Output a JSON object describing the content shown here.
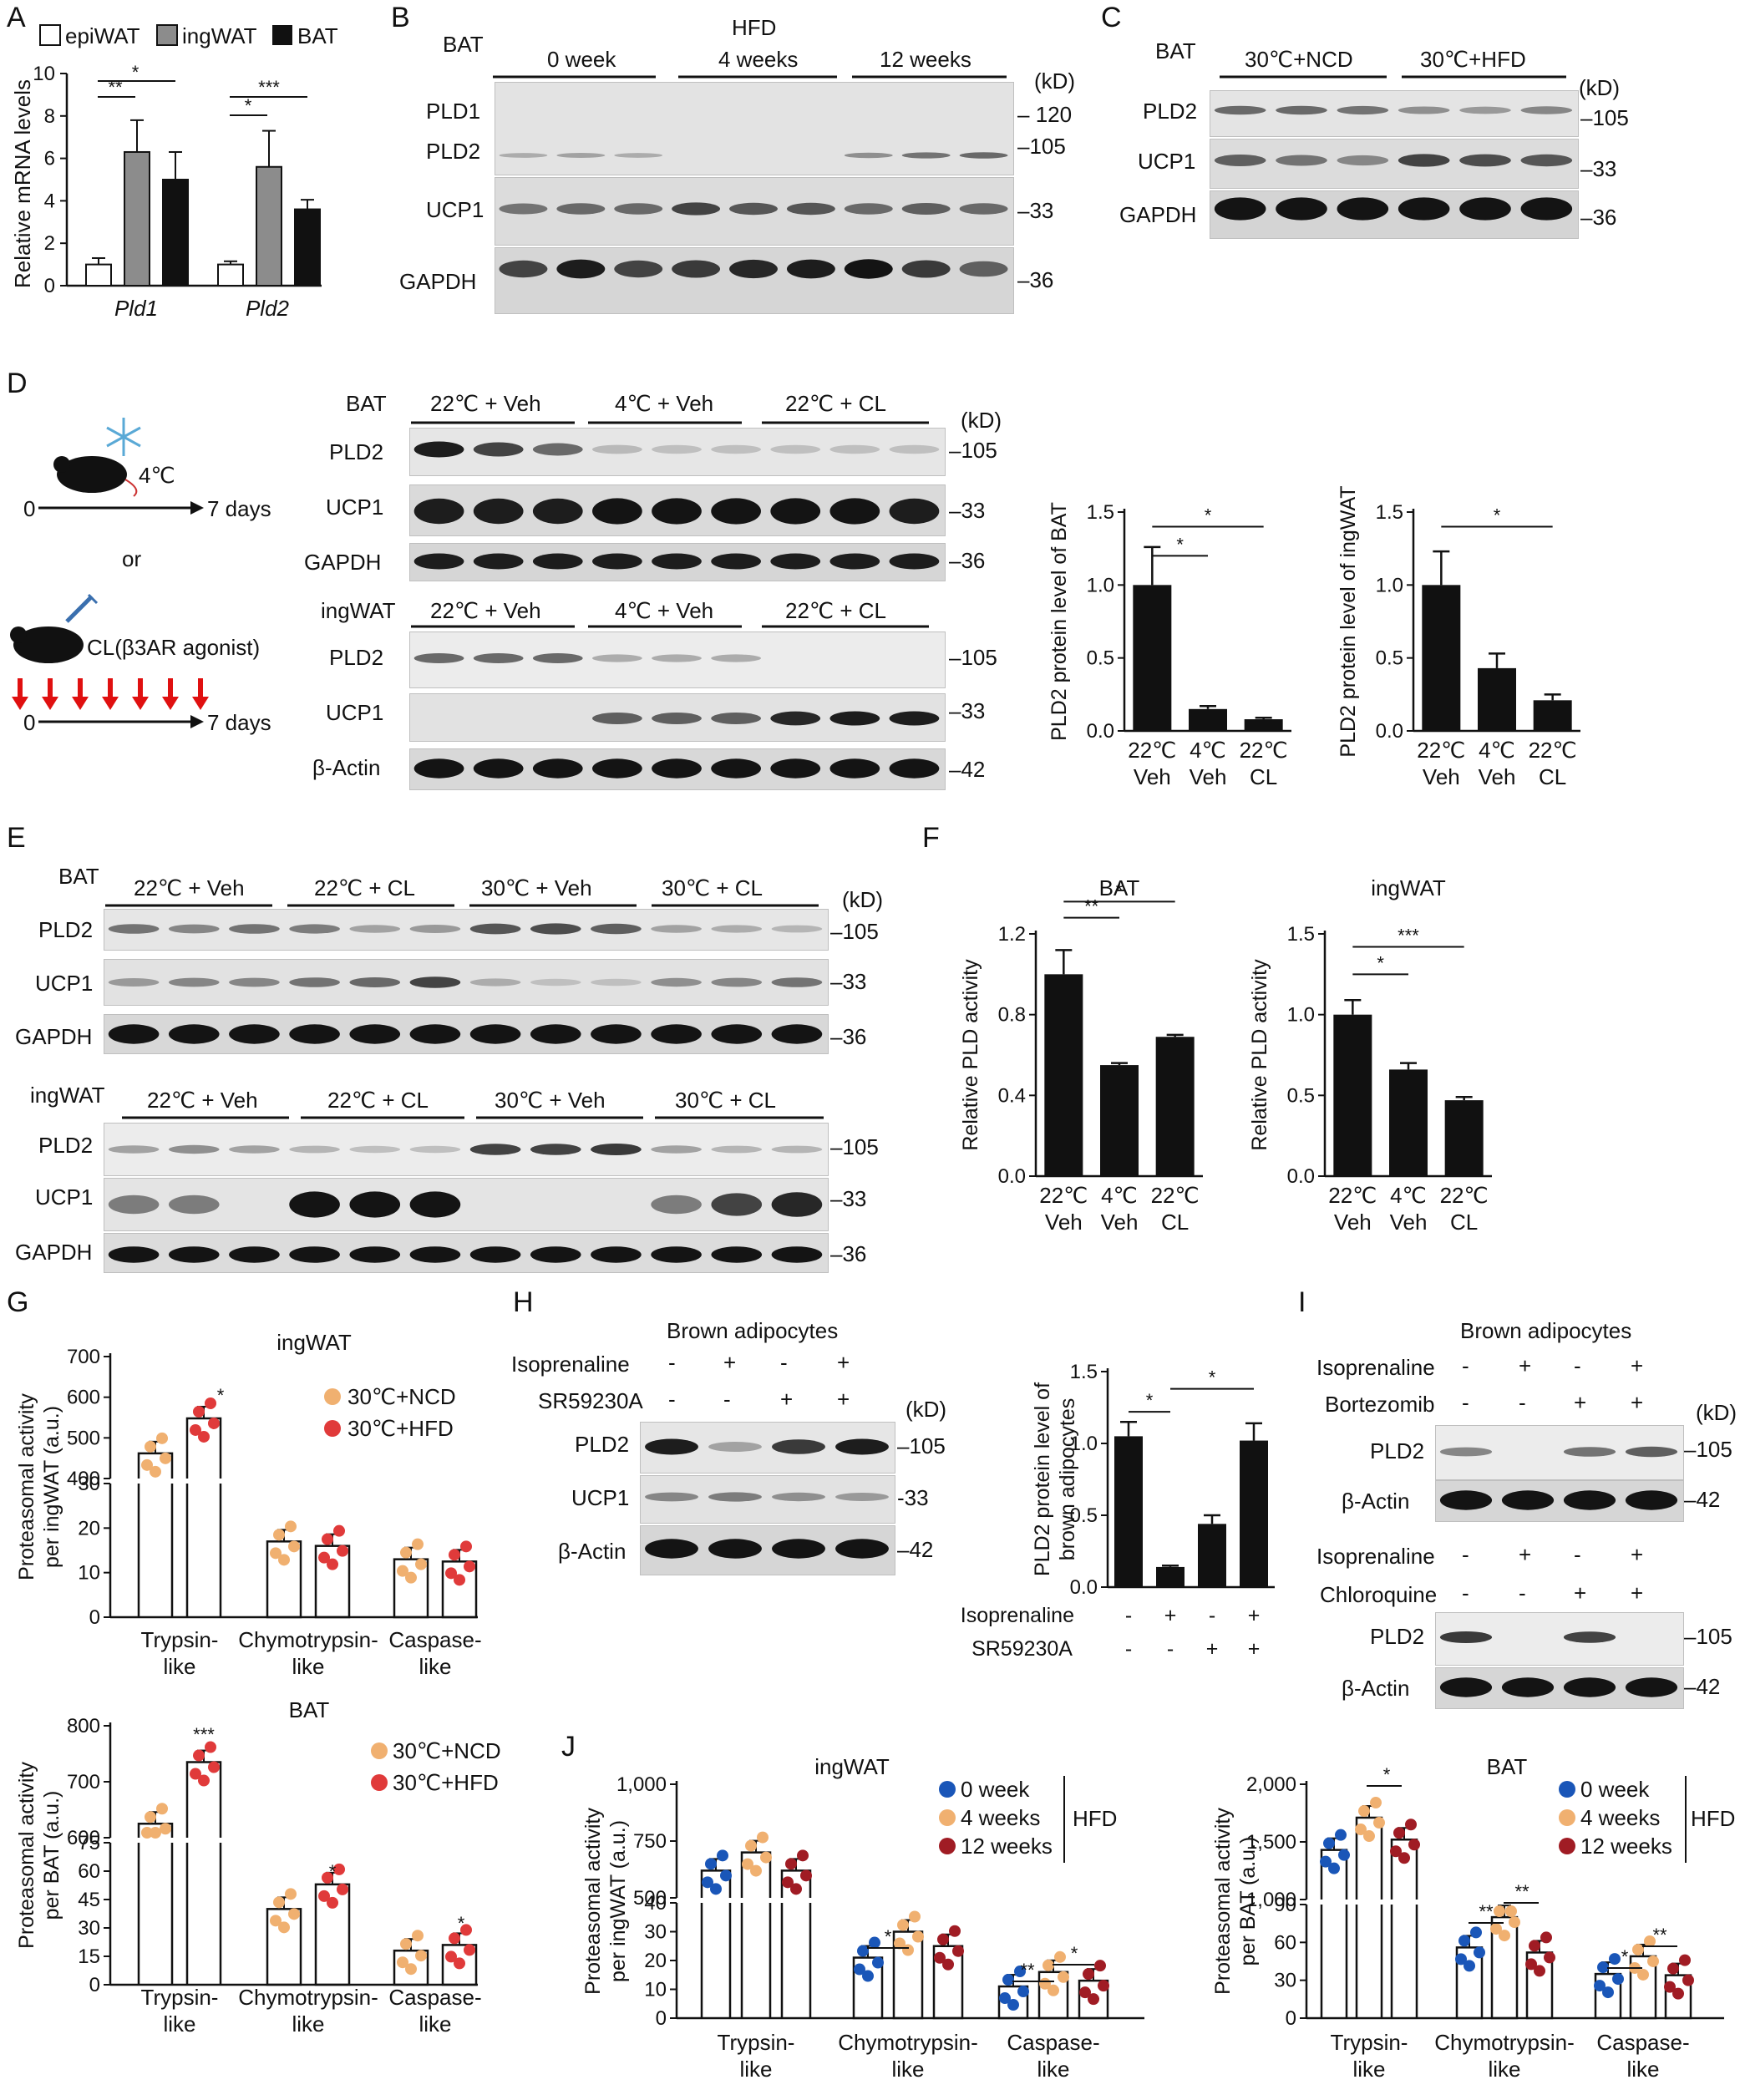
{
  "panels": {
    "A": {
      "letter": "A",
      "legend": [
        "epiWAT",
        "ingWAT",
        "BAT"
      ],
      "ylabel": "Relative mRNA levels",
      "genes": [
        "Pld1",
        "Pld2"
      ],
      "yticks": [
        "0",
        "2",
        "4",
        "6",
        "8",
        "10"
      ],
      "sig": [
        "**",
        "*",
        "*",
        "***"
      ]
    },
    "B": {
      "letter": "B",
      "tissue": "BAT",
      "header": "HFD",
      "groups": [
        "0 week",
        "4 weeks",
        "12 weeks"
      ],
      "unit": "(kD)",
      "rows": [
        "PLD1",
        "PLD2",
        "UCP1",
        "GAPDH"
      ],
      "markers": [
        "120",
        "105",
        "33",
        "36"
      ]
    },
    "C": {
      "letter": "C",
      "tissue": "BAT",
      "groups": [
        "30℃+NCD",
        "30℃+HFD"
      ],
      "unit": "(kD)",
      "rows": [
        "PLD2",
        "UCP1",
        "GAPDH"
      ],
      "markers": [
        "105",
        "33",
        "36"
      ]
    },
    "D": {
      "letter": "D",
      "scheme": {
        "temp": "4℃",
        "days": "7 days",
        "zero": "0",
        "or": "or",
        "cl": "CL(β3AR agonist)"
      },
      "bat_label": "BAT",
      "ing_label": "ingWAT",
      "groups": [
        "22℃ + Veh",
        "4℃ + Veh",
        "22℃ + CL"
      ],
      "unit": "(kD)",
      "bat_rows": [
        "PLD2",
        "UCP1",
        "GAPDH"
      ],
      "bat_markers": [
        "105",
        "33",
        "36"
      ],
      "ing_rows": [
        "PLD2",
        "UCP1",
        "β-Actin"
      ],
      "ing_markers": [
        "105",
        "33",
        "42"
      ],
      "ylabel_bat": "PLD2 protein level of BAT",
      "ylabel_ing": "PLD2 protein level of ingWAT",
      "xcats": [
        [
          "22℃",
          "Veh"
        ],
        [
          "4℃",
          "Veh"
        ],
        [
          "22℃",
          "CL"
        ]
      ],
      "yticks": [
        "0.0",
        "0.5",
        "1.0",
        "1.5"
      ],
      "sig": "*"
    },
    "E": {
      "letter": "E",
      "bat_label": "BAT",
      "ing_label": "ingWAT",
      "groups": [
        "22℃ + Veh",
        "22℃ + CL",
        "30℃ + Veh",
        "30℃ + CL"
      ],
      "unit": "(kD)",
      "rows": [
        "PLD2",
        "UCP1",
        "GAPDH"
      ],
      "markers": [
        "105",
        "33",
        "36"
      ]
    },
    "F": {
      "letter": "F",
      "titles": [
        "BAT",
        "ingWAT"
      ],
      "ylabel": "Relative PLD activity",
      "xcats": [
        [
          "22℃",
          "Veh"
        ],
        [
          "4℃",
          "Veh"
        ],
        [
          "22℃",
          "CL"
        ]
      ],
      "yticks_bat": [
        "0.0",
        "0.4",
        "0.8",
        "1.2"
      ],
      "yticks_ing": [
        "0.0",
        "0.5",
        "1.0",
        "1.5"
      ],
      "sig_bat": [
        "**",
        "*"
      ],
      "sig_ing": [
        "*",
        "***"
      ]
    },
    "G": {
      "letter": "G",
      "title_top": "ingWAT",
      "title_bottom": "BAT",
      "legend": [
        "30℃+NCD",
        "30℃+HFD"
      ],
      "ylabel_top": [
        "Proteasomal activity",
        "per ingWAT (a.u.)"
      ],
      "ylabel_bottom": [
        "Proteasomal activity",
        "per BAT (a.u.)"
      ],
      "xcats": [
        [
          "Trypsin-",
          "like"
        ],
        [
          "Chymotrypsin-",
          "like"
        ],
        [
          "Caspase-",
          "like"
        ]
      ],
      "yticks_top_hi": [
        "400",
        "500",
        "600",
        "700"
      ],
      "yticks_top_lo": [
        "0",
        "10",
        "20",
        "30"
      ],
      "yticks_bot_hi": [
        "600",
        "700",
        "800"
      ],
      "yticks_bot_lo": [
        "0",
        "15",
        "30",
        "45",
        "60",
        "75"
      ],
      "sig_top": [
        "*"
      ],
      "sig_bot": [
        "***",
        "*",
        "*"
      ]
    },
    "H": {
      "letter": "H",
      "title": "Brown adipocytes",
      "treatments": [
        "Isoprenaline",
        "SR59230A"
      ],
      "iso": [
        "-",
        "+",
        "-",
        "+"
      ],
      "sr": [
        "-",
        "-",
        "+",
        "+"
      ],
      "unit": "(kD)",
      "rows": [
        "PLD2",
        "UCP1",
        "β-Actin"
      ],
      "markers": [
        "105",
        "33",
        "42"
      ],
      "ylabel": [
        "PLD2 protein level of",
        "brown adipocytes"
      ],
      "yticks": [
        "0.0",
        "0.5",
        "1.0",
        "1.5"
      ],
      "sig": [
        "*",
        "*"
      ]
    },
    "I": {
      "letter": "I",
      "title": "Brown adipocytes",
      "treatments_top": [
        "Isoprenaline",
        "Bortezomib"
      ],
      "treatments_bottom": [
        "Isoprenaline",
        "Chloroquine"
      ],
      "iso": [
        "-",
        "+",
        "-",
        "+"
      ],
      "drug": [
        "-",
        "-",
        "+",
        "+"
      ],
      "unit": "(kD)",
      "rows": [
        "PLD2",
        "β-Actin"
      ],
      "markers": [
        "105",
        "42"
      ]
    },
    "J": {
      "letter": "J",
      "titles": [
        "ingWAT",
        "BAT"
      ],
      "legend": [
        "0 week",
        "4 weeks",
        "12 weeks"
      ],
      "legend_group": "HFD",
      "ylabel_ing": [
        "Proteasomal activity",
        "per ingWAT (a.u.)"
      ],
      "ylabel_bat": [
        "Proteasomal activity",
        "per BAT (a.u.)"
      ],
      "xcats": [
        [
          "Trypsin-",
          "like"
        ],
        [
          "Chymotrypsin-",
          "like"
        ],
        [
          "Caspase-",
          "like"
        ]
      ],
      "yticks_ing_hi": [
        "500",
        "750",
        "1,000"
      ],
      "yticks_ing_lo": [
        "0",
        "10",
        "20",
        "30",
        "40"
      ],
      "yticks_bat_hi": [
        "1,000",
        "1,500",
        "2,000"
      ],
      "yticks_bat_lo": [
        "0",
        "30",
        "60",
        "90"
      ],
      "sig_ing": [
        "*",
        "**",
        "*"
      ],
      "sig_bat": [
        "*",
        "**",
        "**",
        "*",
        "**"
      ]
    }
  },
  "chart_data": [
    {
      "type": "bar",
      "panel": "A",
      "categories": [
        "Pld1",
        "Pld2"
      ],
      "ylabel": "Relative mRNA levels",
      "ylim": [
        0,
        10
      ],
      "series": [
        {
          "name": "epiWAT",
          "values": [
            1.0,
            1.0
          ],
          "err": [
            0.3,
            0.15
          ]
        },
        {
          "name": "ingWAT",
          "values": [
            6.3,
            5.6
          ],
          "err": [
            1.5,
            1.7
          ]
        },
        {
          "name": "BAT",
          "values": [
            5.0,
            3.6
          ],
          "err": [
            1.3,
            0.45
          ]
        }
      ]
    },
    {
      "type": "bar",
      "panel": "D-BAT",
      "categories": [
        "22℃ Veh",
        "4℃ Veh",
        "22℃ CL"
      ],
      "ylabel": "PLD2 protein level of BAT",
      "ylim": [
        0,
        1.5
      ],
      "values": [
        1.0,
        0.15,
        0.08
      ],
      "err": [
        0.26,
        0.02,
        0.01
      ]
    },
    {
      "type": "bar",
      "panel": "D-ingWAT",
      "categories": [
        "22℃ Veh",
        "4℃ Veh",
        "22℃ CL"
      ],
      "ylabel": "PLD2 protein level of ingWAT",
      "ylim": [
        0,
        1.5
      ],
      "values": [
        1.0,
        0.43,
        0.21
      ],
      "err": [
        0.23,
        0.1,
        0.04
      ]
    },
    {
      "type": "bar",
      "panel": "F-BAT",
      "categories": [
        "22℃ Veh",
        "4℃ Veh",
        "22℃ CL"
      ],
      "ylabel": "Relative PLD activity",
      "ylim": [
        0,
        1.2
      ],
      "values": [
        1.0,
        0.55,
        0.69
      ],
      "err": [
        0.12,
        0.01,
        0.01
      ]
    },
    {
      "type": "bar",
      "panel": "F-ingWAT",
      "categories": [
        "22℃ Veh",
        "4℃ Veh",
        "22℃ CL"
      ],
      "ylabel": "Relative PLD activity",
      "ylim": [
        0,
        1.5
      ],
      "values": [
        1.0,
        0.66,
        0.47
      ],
      "err": [
        0.09,
        0.04,
        0.02
      ]
    },
    {
      "type": "bar",
      "panel": "G-ingWAT",
      "categories": [
        "Trypsin-like",
        "Chymotrypsin-like",
        "Caspase-like"
      ],
      "ylabel": "Proteasomal activity per ingWAT (a.u.)",
      "series": [
        {
          "name": "30℃+NCD",
          "values": [
            462,
            17,
            13
          ]
        },
        {
          "name": "30℃+HFD",
          "values": [
            548,
            16,
            12.5
          ]
        }
      ]
    },
    {
      "type": "bar",
      "panel": "G-BAT",
      "categories": [
        "Trypsin-like",
        "Chymotrypsin-like",
        "Caspase-like"
      ],
      "ylabel": "Proteasomal activity per BAT (a.u.)",
      "series": [
        {
          "name": "30℃+NCD",
          "values": [
            625,
            40,
            18
          ]
        },
        {
          "name": "30℃+HFD",
          "values": [
            735,
            53,
            21
          ]
        }
      ]
    },
    {
      "type": "bar",
      "panel": "H",
      "categories": [
        "-/-",
        "+/-",
        "-/+",
        "+/+"
      ],
      "ylabel": "PLD2 protein level of brown adipocytes",
      "ylim": [
        0,
        1.5
      ],
      "values": [
        1.05,
        0.14,
        0.44,
        1.02
      ],
      "err": [
        0.1,
        0.01,
        0.06,
        0.12
      ]
    },
    {
      "type": "bar",
      "panel": "J-ingWAT",
      "categories": [
        "Trypsin-like",
        "Chymotrypsin-like",
        "Caspase-like"
      ],
      "ylabel": "Proteasomal activity per ingWAT (a.u.)",
      "series": [
        {
          "name": "0 week",
          "values": [
            620,
            21,
            11
          ]
        },
        {
          "name": "4 weeks",
          "values": [
            700,
            30,
            16
          ]
        },
        {
          "name": "12 weeks",
          "values": [
            620,
            25,
            13
          ]
        }
      ]
    },
    {
      "type": "bar",
      "panel": "J-BAT",
      "categories": [
        "Trypsin-like",
        "Chymotrypsin-like",
        "Caspase-like"
      ],
      "ylabel": "Proteasomal activity per BAT (a.u.)",
      "series": [
        {
          "name": "0 week",
          "values": [
            1430,
            56,
            35
          ]
        },
        {
          "name": "4 weeks",
          "values": [
            1710,
            80,
            49
          ]
        },
        {
          "name": "12 weeks",
          "values": [
            1520,
            52,
            34
          ]
        }
      ]
    }
  ]
}
